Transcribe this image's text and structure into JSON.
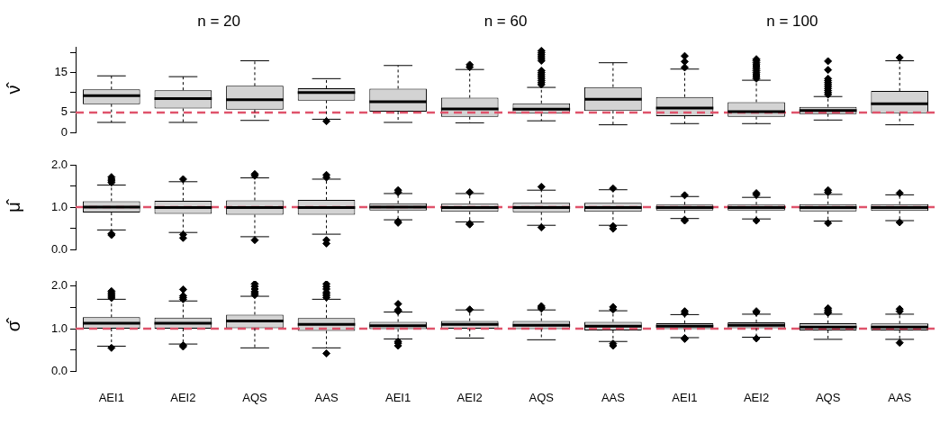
{
  "chart_data": [
    {
      "type": "box",
      "ylabel": "ν̂",
      "annotations": [
        "n = 20",
        "n = 60",
        "n = 100"
      ],
      "categories": [
        null,
        null,
        null,
        null,
        null,
        null,
        null,
        null,
        null,
        null,
        null,
        null
      ],
      "marker": "diamond",
      "tick_labels": "y",
      "ylim": [
        0,
        21.5
      ],
      "yticks": [
        0,
        5,
        {
          "value": 10,
          "label": null
        },
        15,
        {
          "value": 20,
          "label": null
        }
      ],
      "ref_lines": [
        {
          "axis": "y",
          "value": 5,
          "color": "#df536b",
          "line_style": "dashed"
        }
      ],
      "boxes": [
        {
          "low": 2.5,
          "q1": 7.1,
          "median": 9.2,
          "q3": 10.8,
          "high": 14.2
        },
        {
          "low": 2.5,
          "q1": 6.0,
          "median": 8.5,
          "q3": 10.6,
          "high": 14.0
        },
        {
          "low": 3.0,
          "q1": 5.7,
          "median": 8.2,
          "q3": 11.7,
          "high": 18.0
        },
        {
          "low": 3.3,
          "q1": 8.0,
          "median": 10.0,
          "q3": 11.1,
          "high": 13.5,
          "outliers": [
            2.8
          ]
        },
        {
          "low": 2.5,
          "q1": 5.2,
          "median": 7.7,
          "q3": 11.0,
          "high": 16.8
        },
        {
          "low": 2.4,
          "q1": 3.9,
          "median": 5.9,
          "q3": 8.7,
          "high": 15.8,
          "outliers": [
            16.4,
            17.0
          ]
        },
        {
          "low": 2.9,
          "q1": 4.7,
          "median": 5.8,
          "q3": 7.3,
          "high": 11.3,
          "outliers": [
            12,
            12.5,
            13,
            13.5,
            14,
            14.5,
            15,
            15.5,
            18,
            18.5,
            19,
            19.5,
            20,
            20.5
          ]
        },
        {
          "low": 1.9,
          "q1": 5.4,
          "median": 8.3,
          "q3": 11.4,
          "high": 17.5
        },
        {
          "low": 2.2,
          "q1": 4.1,
          "median": 6.1,
          "q3": 8.9,
          "high": 15.9,
          "outliers": [
            16.3,
            17.8,
            19.2
          ]
        },
        {
          "low": 2.2,
          "q1": 3.9,
          "median": 5.2,
          "q3": 7.6,
          "high": 13.1,
          "outliers": [
            13.5,
            14,
            14.5,
            15,
            15.5,
            16,
            16.5,
            17,
            17.5,
            18,
            18.4
          ]
        },
        {
          "low": 3.1,
          "q1": 4.6,
          "median": 5.5,
          "q3": 6.4,
          "high": 9.0,
          "outliers": [
            9.5,
            10,
            10.5,
            11,
            11.5,
            12,
            12.5,
            13,
            13.5,
            15.7,
            17.9
          ]
        },
        {
          "low": 1.9,
          "q1": 4.8,
          "median": 7.2,
          "q3": 10.4,
          "high": 18.0,
          "outliers": [
            18.8
          ]
        }
      ]
    },
    {
      "type": "box",
      "ylabel": "μ̂",
      "categories": [
        null,
        null,
        null,
        null,
        null,
        null,
        null,
        null,
        null,
        null,
        null,
        null
      ],
      "marker": "diamond",
      "tick_labels": "y",
      "ylim": [
        0,
        2
      ],
      "yticks": [
        {
          "value": 0,
          "label": "0.0"
        },
        {
          "value": 0.5,
          "label": null
        },
        {
          "value": 1,
          "label": "1.0"
        },
        {
          "value": 1.5,
          "label": null
        },
        {
          "value": 2,
          "label": "2.0"
        }
      ],
      "ref_lines": [
        {
          "axis": "y",
          "value": 1,
          "color": "#df536b",
          "line_style": "dashed"
        }
      ],
      "boxes": [
        {
          "low": 0.46,
          "q1": 0.87,
          "median": 1.0,
          "q3": 1.14,
          "high": 1.52,
          "outliers": [
            1.58,
            1.62,
            1.66,
            1.71,
            0.34,
            0.37
          ]
        },
        {
          "low": 0.4,
          "q1": 0.84,
          "median": 0.99,
          "q3": 1.15,
          "high": 1.6,
          "outliers": [
            1.66,
            0.35,
            0.27
          ]
        },
        {
          "low": 0.3,
          "q1": 0.82,
          "median": 0.99,
          "q3": 1.16,
          "high": 1.69,
          "outliers": [
            1.74,
            1.78,
            0.22
          ]
        },
        {
          "low": 0.36,
          "q1": 0.82,
          "median": 0.99,
          "q3": 1.17,
          "high": 1.66,
          "outliers": [
            1.7,
            1.76,
            0.22,
            0.14
          ]
        },
        {
          "low": 0.7,
          "q1": 0.92,
          "median": 1.0,
          "q3": 1.09,
          "high": 1.32,
          "outliers": [
            1.35,
            1.4,
            0.63,
            0.66
          ]
        },
        {
          "low": 0.65,
          "q1": 0.89,
          "median": 0.99,
          "q3": 1.08,
          "high": 1.32,
          "outliers": [
            1.35,
            0.59,
            0.61
          ]
        },
        {
          "low": 0.57,
          "q1": 0.88,
          "median": 0.99,
          "q3": 1.1,
          "high": 1.4,
          "outliers": [
            1.48,
            0.52
          ]
        },
        {
          "low": 0.57,
          "q1": 0.89,
          "median": 0.99,
          "q3": 1.1,
          "high": 1.41,
          "outliers": [
            1.44,
            0.49,
            0.55
          ]
        },
        {
          "low": 0.73,
          "q1": 0.92,
          "median": 0.99,
          "q3": 1.06,
          "high": 1.25,
          "outliers": [
            1.28,
            0.68,
            0.7
          ]
        },
        {
          "low": 0.72,
          "q1": 0.92,
          "median": 0.99,
          "q3": 1.06,
          "high": 1.23,
          "outliers": [
            1.29,
            1.33,
            0.68
          ]
        },
        {
          "low": 0.67,
          "q1": 0.9,
          "median": 0.99,
          "q3": 1.07,
          "high": 1.3,
          "outliers": [
            1.35,
            1.4,
            0.62
          ]
        },
        {
          "low": 0.68,
          "q1": 0.91,
          "median": 0.99,
          "q3": 1.07,
          "high": 1.29,
          "outliers": [
            1.33,
            0.64
          ]
        }
      ]
    },
    {
      "type": "box",
      "ylabel": "σ̂",
      "categories": [
        "AEI1",
        "AEI2",
        "AQS",
        "AAS",
        "AEI1",
        "AEI2",
        "AQS",
        "AAS",
        "AEI1",
        "AEI2",
        "AQS",
        "AAS"
      ],
      "marker": "diamond",
      "ylim": [
        0,
        2.12
      ],
      "yticks": [
        {
          "value": 0,
          "label": "0.0"
        },
        {
          "value": 0.5,
          "label": null
        },
        {
          "value": 1,
          "label": "1.0"
        },
        {
          "value": 1.5,
          "label": null
        },
        {
          "value": 2,
          "label": "2.0"
        }
      ],
      "ref_lines": [
        {
          "axis": "y",
          "value": 1,
          "color": "#df536b",
          "line_style": "dashed"
        }
      ],
      "boxes": [
        {
          "low": 0.59,
          "q1": 1.0,
          "median": 1.13,
          "q3": 1.27,
          "high": 1.69,
          "outliers": [
            1.72,
            1.76,
            1.8,
            1.84,
            1.88,
            0.55
          ]
        },
        {
          "low": 0.64,
          "q1": 1.0,
          "median": 1.13,
          "q3": 1.26,
          "high": 1.65,
          "outliers": [
            1.69,
            1.73,
            1.77,
            1.92,
            0.58,
            0.61
          ]
        },
        {
          "low": 0.55,
          "q1": 1.01,
          "median": 1.18,
          "q3": 1.33,
          "high": 1.76,
          "outliers": [
            1.79,
            1.83,
            1.87,
            1.93,
            1.99,
            2.05
          ]
        },
        {
          "low": 0.55,
          "q1": 0.95,
          "median": 1.1,
          "q3": 1.25,
          "high": 1.69,
          "outliers": [
            1.73,
            1.77,
            1.81,
            1.85,
            1.93,
            1.99,
            2.05,
            0.42
          ]
        },
        {
          "low": 0.76,
          "q1": 0.99,
          "median": 1.07,
          "q3": 1.16,
          "high": 1.39,
          "outliers": [
            1.41,
            1.44,
            1.58,
            0.6,
            0.66,
            0.7
          ]
        },
        {
          "low": 0.78,
          "q1": 1.0,
          "median": 1.1,
          "q3": 1.18,
          "high": 1.44,
          "outliers": [
            1.45
          ]
        },
        {
          "low": 0.74,
          "q1": 0.99,
          "median": 1.08,
          "q3": 1.18,
          "high": 1.44,
          "outliers": [
            1.47,
            1.5,
            1.53
          ]
        },
        {
          "low": 0.7,
          "q1": 0.96,
          "median": 1.06,
          "q3": 1.16,
          "high": 1.42,
          "outliers": [
            1.45,
            1.51,
            0.65,
            0.6
          ]
        },
        {
          "low": 0.79,
          "q1": 0.99,
          "median": 1.06,
          "q3": 1.13,
          "high": 1.33,
          "outliers": [
            1.36,
            1.41,
            0.76,
            0.78
          ]
        },
        {
          "low": 0.8,
          "q1": 1.01,
          "median": 1.08,
          "q3": 1.15,
          "high": 1.34,
          "outliers": [
            1.38,
            1.41,
            0.77
          ]
        },
        {
          "low": 0.75,
          "q1": 0.96,
          "median": 1.04,
          "q3": 1.13,
          "high": 1.34,
          "outliers": [
            1.37,
            1.4,
            1.44,
            1.48
          ]
        },
        {
          "low": 0.75,
          "q1": 0.96,
          "median": 1.04,
          "q3": 1.12,
          "high": 1.34,
          "outliers": [
            1.41,
            1.46,
            0.67
          ]
        }
      ]
    }
  ]
}
